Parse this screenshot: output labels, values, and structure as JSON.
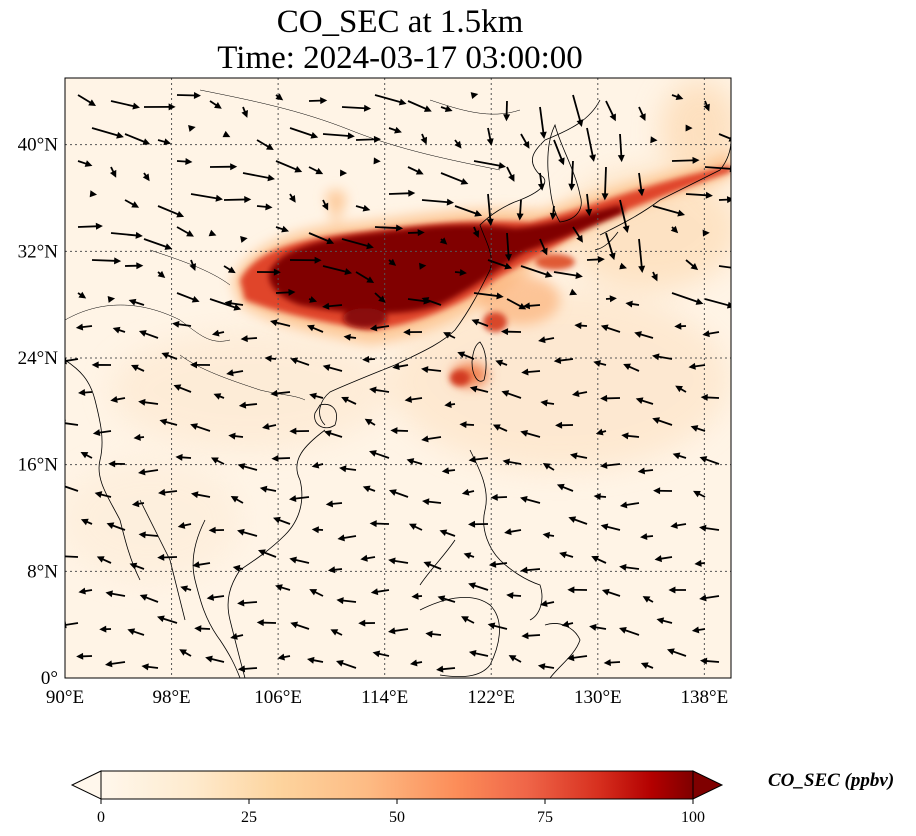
{
  "title": {
    "line1": "CO_SEC at 1.5km",
    "line2": "Time: 2024-03-17 03:00:00"
  },
  "map": {
    "lon_range": [
      90,
      140
    ],
    "lat_range": [
      0,
      45
    ],
    "lon_ticks": [
      {
        "value": 90,
        "label": "90°E"
      },
      {
        "value": 98,
        "label": "98°E"
      },
      {
        "value": 106,
        "label": "106°E"
      },
      {
        "value": 114,
        "label": "114°E"
      },
      {
        "value": 122,
        "label": "122°E"
      },
      {
        "value": 130,
        "label": "130°E"
      },
      {
        "value": 138,
        "label": "138°E"
      }
    ],
    "lat_ticks": [
      {
        "value": 0,
        "label": "0°"
      },
      {
        "value": 8,
        "label": "8°N"
      },
      {
        "value": 16,
        "label": "16°N"
      },
      {
        "value": 24,
        "label": "24°N"
      },
      {
        "value": 32,
        "label": "32°N"
      },
      {
        "value": 40,
        "label": "40°N"
      }
    ],
    "gridlines": true,
    "colors": {
      "low": "#fff7ec",
      "mid": "#fdbb84",
      "high": "#7f0000",
      "coast": "#000000",
      "grid": "#555555",
      "wind": "#000000"
    }
  },
  "colorbar": {
    "label": "CO_SEC (ppbv)",
    "min": 0,
    "max": 100,
    "ticks": [
      {
        "value": 0,
        "label": "0"
      },
      {
        "value": 25,
        "label": "25"
      },
      {
        "value": 50,
        "label": "50"
      },
      {
        "value": 75,
        "label": "75"
      },
      {
        "value": 100,
        "label": "100"
      }
    ],
    "extend": "both"
  }
}
